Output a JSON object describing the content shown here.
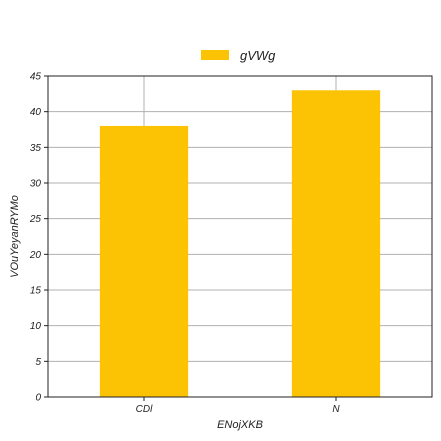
{
  "chart_data": {
    "type": "bar",
    "title": "",
    "xlabel": "ENojXKB",
    "ylabel": "VOuYeyanRYMo",
    "categories": [
      "CDl",
      "N"
    ],
    "series": [
      {
        "name": "gVWg",
        "values": [
          38,
          43
        ],
        "color": "#fcc304"
      }
    ],
    "ylim": [
      0,
      45
    ],
    "yticks": [
      0,
      5,
      10,
      15,
      20,
      25,
      30,
      35,
      40,
      45
    ],
    "grid": true,
    "legend_position": "top-center"
  }
}
